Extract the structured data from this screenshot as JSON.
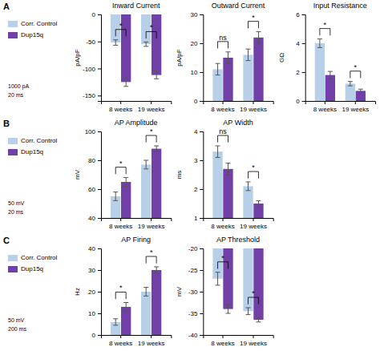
{
  "chart_data": [
    {
      "type": "bar",
      "panel": "A",
      "legend": "left",
      "scale_labels": [
        "1000 pA",
        "20 ms"
      ],
      "title": "Inward Current",
      "ylabel": "pA/pF",
      "categories": [
        "8 weeks",
        "19 weeks"
      ],
      "series": [
        {
          "name": "Corr. Control",
          "color": "#b8cfe8",
          "values": [
            -52,
            -55
          ],
          "errors": [
            5,
            4
          ]
        },
        {
          "name": "Dup15q",
          "color": "#7040a8",
          "values": [
            -125,
            -112
          ],
          "errors": [
            8,
            7
          ]
        }
      ],
      "annotations": [
        "*",
        "*"
      ],
      "ylim": [
        -160,
        0
      ],
      "yticks": [
        -150,
        -100,
        -50,
        0
      ]
    },
    {
      "type": "bar",
      "title": "Outward Current",
      "ylabel": "pA/pF",
      "categories": [
        "8 weeks",
        "19 weeks"
      ],
      "series": [
        {
          "name": "Corr. Control",
          "color": "#b8cfe8",
          "values": [
            11,
            16
          ],
          "errors": [
            2,
            2
          ]
        },
        {
          "name": "Dup15q",
          "color": "#7040a8",
          "values": [
            15,
            22
          ],
          "errors": [
            2,
            2
          ]
        }
      ],
      "annotations": [
        "ns",
        "*"
      ],
      "ylim": [
        0,
        30
      ],
      "yticks": [
        0,
        10,
        20,
        30
      ]
    },
    {
      "type": "bar",
      "title": "Input Resistance",
      "ylabel": "GΩ",
      "categories": [
        "8 weeks",
        "19 weeks"
      ],
      "series": [
        {
          "name": "Corr. Control",
          "color": "#b8cfe8",
          "values": [
            4.0,
            1.2
          ],
          "errors": [
            0.3,
            0.15
          ]
        },
        {
          "name": "Dup15q",
          "color": "#7040a8",
          "values": [
            1.8,
            0.7
          ],
          "errors": [
            0.25,
            0.12
          ]
        }
      ],
      "annotations": [
        "*",
        "*"
      ],
      "ylim": [
        0,
        6
      ],
      "yticks": [
        0,
        2,
        4,
        6
      ]
    },
    {
      "type": "bar",
      "panel": "B",
      "legend": "left",
      "scale_labels": [
        "50 mV",
        "20 ms"
      ],
      "title": "AP Amplitude",
      "ylabel": "mV",
      "categories": [
        "8 weeks",
        "19 weeks"
      ],
      "series": [
        {
          "name": "Corr. Control",
          "color": "#b8cfe8",
          "values": [
            55,
            77
          ],
          "errors": [
            3,
            3
          ]
        },
        {
          "name": "Dup15q",
          "color": "#7040a8",
          "values": [
            65,
            88
          ],
          "errors": [
            3,
            2
          ]
        }
      ],
      "annotations": [
        "*",
        "*"
      ],
      "ylim": [
        40,
        100
      ],
      "yticks": [
        40,
        60,
        80,
        100
      ]
    },
    {
      "type": "bar",
      "title": "AP Width",
      "ylabel": "ms",
      "categories": [
        "8 weeks",
        "19 weeks"
      ],
      "series": [
        {
          "name": "Corr. Control",
          "color": "#b8cfe8",
          "values": [
            3.3,
            2.1
          ],
          "errors": [
            0.2,
            0.15
          ]
        },
        {
          "name": "Dup15q",
          "color": "#7040a8",
          "values": [
            2.7,
            1.5
          ],
          "errors": [
            0.2,
            0.1
          ]
        }
      ],
      "annotations": [
        "ns",
        "*"
      ],
      "ylim": [
        1,
        4
      ],
      "yticks": [
        1,
        2,
        3,
        4
      ]
    },
    {
      "type": "bar",
      "panel": "C",
      "legend": "left",
      "scale_labels": [
        "50 mV",
        "200 ms"
      ],
      "title": "AP Firing",
      "ylabel": "Hz",
      "categories": [
        "8 weeks",
        "19 weeks"
      ],
      "series": [
        {
          "name": "Corr. Control",
          "color": "#b8cfe8",
          "values": [
            6,
            20
          ],
          "errors": [
            1.5,
            2
          ]
        },
        {
          "name": "Dup15q",
          "color": "#7040a8",
          "values": [
            13,
            30
          ],
          "errors": [
            2,
            1.5
          ]
        }
      ],
      "annotations": [
        "*",
        "*"
      ],
      "ylim": [
        0,
        40
      ],
      "yticks": [
        0,
        10,
        20,
        30,
        40
      ]
    },
    {
      "type": "bar",
      "title": "AP Threshold",
      "ylabel": "mV",
      "categories": [
        "8 weeks",
        "19 weeks"
      ],
      "series": [
        {
          "name": "Corr. Control",
          "color": "#b8cfe8",
          "values": [
            -27,
            -34.5
          ],
          "errors": [
            1.5,
            0.8
          ]
        },
        {
          "name": "Dup15q",
          "color": "#7040a8",
          "values": [
            -34,
            -36.5
          ],
          "errors": [
            1.0,
            0.5
          ]
        }
      ],
      "annotations": [
        "*",
        "*"
      ],
      "ylim": [
        -40,
        -20
      ],
      "yticks": [
        -40,
        -35,
        -30,
        -25,
        -20
      ]
    }
  ]
}
